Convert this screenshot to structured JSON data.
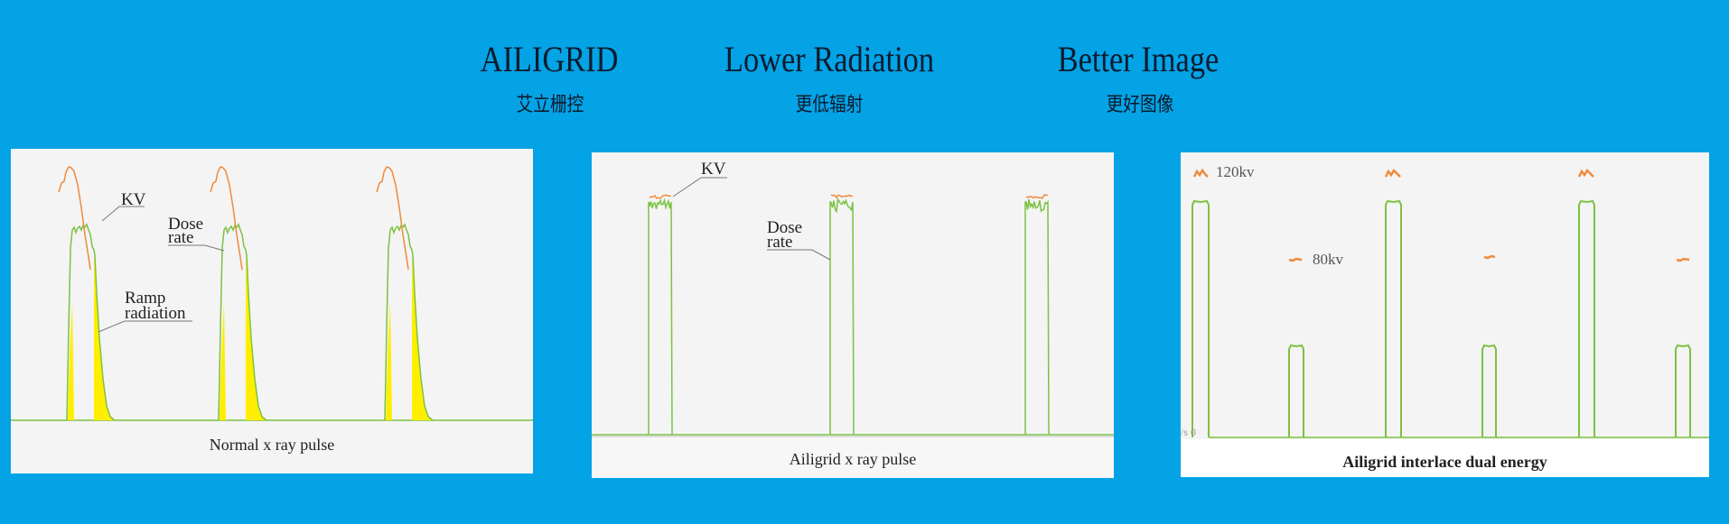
{
  "header": [
    {
      "title": "AILIGRID",
      "subtitle": "艾立栅控"
    },
    {
      "title": "Lower Radiation",
      "subtitle": "更低辐射"
    },
    {
      "title": "Better Image",
      "subtitle": "更好图像"
    }
  ],
  "panels": {
    "normal": {
      "caption": "Normal x ray pulse",
      "kv_label": "KV",
      "dose_label_1": "Dose",
      "dose_label_2": "rate",
      "ramp_label_1": "Ramp",
      "ramp_label_2": "radiation"
    },
    "ailigrid": {
      "caption": "Ailigrid x ray pulse",
      "kv_label": "KV",
      "dose_label_1": "Dose",
      "dose_label_2": "rate"
    },
    "dual": {
      "caption": "Ailigrid interlace dual energy",
      "high_label": "120kv",
      "low_label": "80kv",
      "axis_label": "/s 0"
    }
  },
  "colors": {
    "background": "#03a3e6",
    "dose_rate": "#7cc242",
    "kv": "#f08a3c",
    "ramp": "#ffee00"
  }
}
